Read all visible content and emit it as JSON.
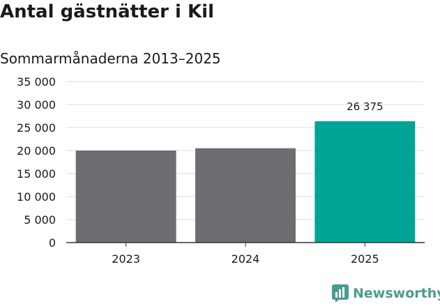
{
  "title": "Antal gästnätter i Kil",
  "subtitle": "Sommarmånaderna 2013–2025",
  "brand": {
    "name": "Newsworthy",
    "color": "#4d9b8e"
  },
  "colors": {
    "bar_default": "#6d6c71",
    "bar_highlight": "#00a497",
    "grid": "#dcdcdc",
    "axis": "#333333",
    "text": "#1a1a1a"
  },
  "chart_data": {
    "type": "bar",
    "title": "Antal gästnätter i Kil",
    "subtitle": "Sommarmånaderna 2013–2025",
    "categories": [
      "2023",
      "2024",
      "2025"
    ],
    "values": [
      20000,
      20500,
      26375
    ],
    "highlight_index": 2,
    "data_labels": [
      "",
      "",
      "26 375"
    ],
    "ylim": [
      0,
      35000
    ],
    "yticks": [
      0,
      5000,
      10000,
      15000,
      20000,
      25000,
      30000,
      35000
    ],
    "ytick_labels": [
      "0",
      "5 000",
      "10 000",
      "15 000",
      "20 000",
      "25 000",
      "30 000",
      "35 000"
    ],
    "grid": true,
    "legend": "none"
  }
}
